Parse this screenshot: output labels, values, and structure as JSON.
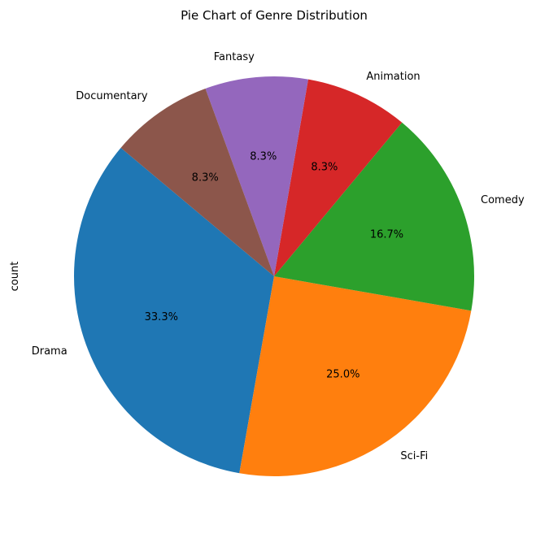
{
  "chart_data": {
    "type": "pie",
    "title": "Pie Chart of Genre Distribution",
    "ylabel": "count",
    "categories": [
      "Drama",
      "Sci-Fi",
      "Comedy",
      "Animation",
      "Fantasy",
      "Documentary"
    ],
    "values": [
      33.3,
      25.0,
      16.7,
      8.3,
      8.3,
      8.3
    ],
    "percent_labels": [
      "33.3%",
      "25.0%",
      "16.7%",
      "8.3%",
      "8.3%",
      "8.3%"
    ],
    "colors": [
      "#1f77b4",
      "#ff7f0e",
      "#2ca02c",
      "#d62728",
      "#9467bd",
      "#8c564b"
    ],
    "start_angle_deg": 140,
    "direction": "counterclockwise"
  }
}
